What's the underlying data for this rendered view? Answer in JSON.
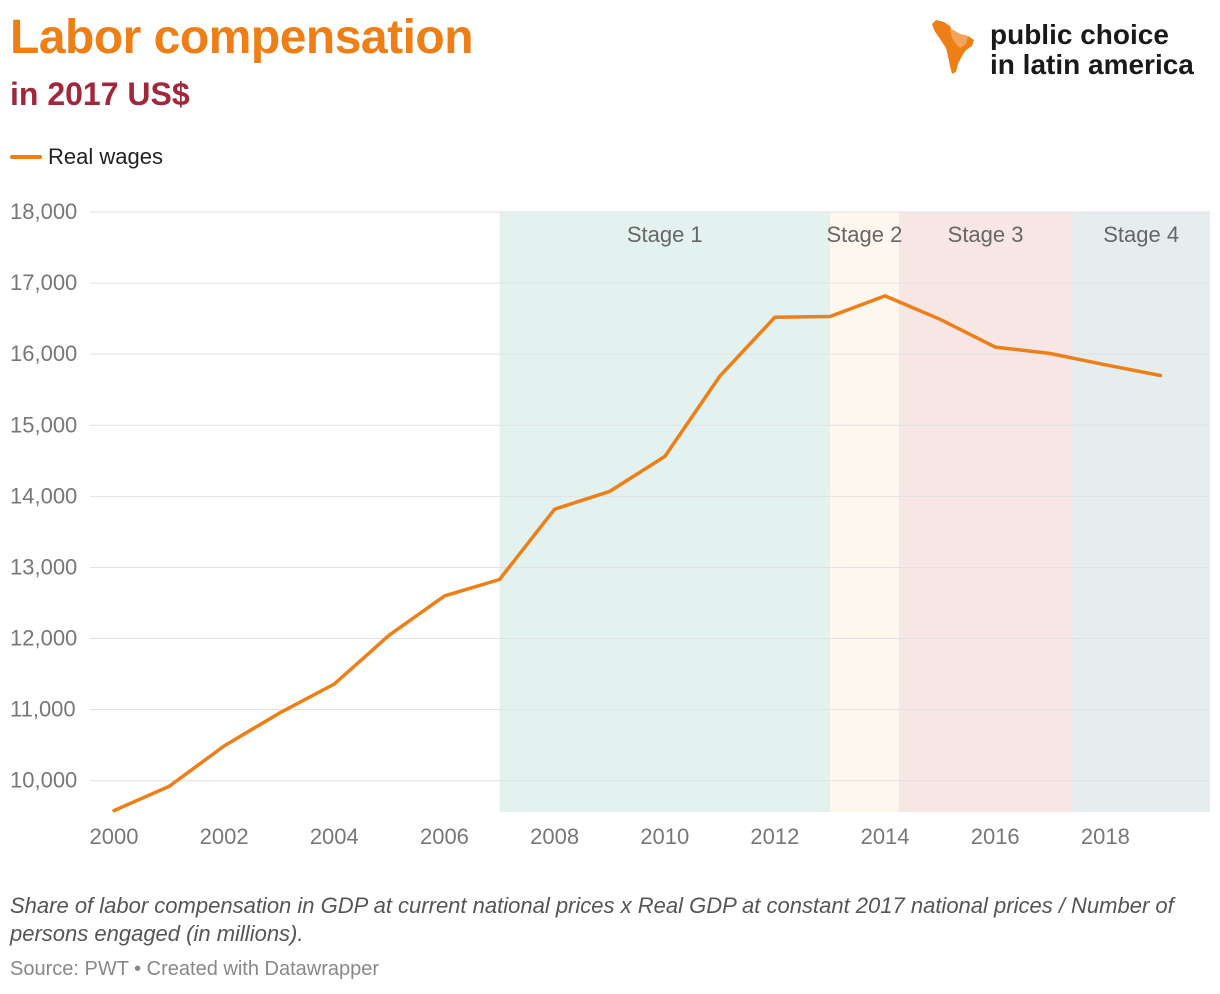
{
  "header": {
    "title": "Labor compensation",
    "subtitle": "in 2017 US$"
  },
  "logo": {
    "line1": "public choice",
    "line2": "in latin america"
  },
  "colors": {
    "line": "#ee7e16",
    "stage1": "#e4f2ef",
    "stage2": "#fdf7ee",
    "stage3": "#f8e6e5",
    "stage4": "#e5edee",
    "grid": "#e1e1e1",
    "tick": "#777777",
    "stage_label": "#666666"
  },
  "chart_data": {
    "type": "line",
    "title": "Labor compensation",
    "subtitle": "in 2017 US$",
    "xlabel": "",
    "ylabel": "",
    "legend": "top-left",
    "grid": true,
    "xlim": [
      2000,
      2019.9
    ],
    "ylim": [
      9560,
      18000
    ],
    "x_ticks": [
      2000,
      2002,
      2004,
      2006,
      2008,
      2010,
      2012,
      2014,
      2016,
      2018
    ],
    "x_tick_labels": [
      "2000",
      "2002",
      "2004",
      "2006",
      "2008",
      "2010",
      "2012",
      "2014",
      "2016",
      "2018"
    ],
    "y_ticks": [
      10000,
      11000,
      12000,
      13000,
      14000,
      15000,
      16000,
      17000,
      18000
    ],
    "y_tick_labels": [
      "10,000",
      "11,000",
      "12,000",
      "13,000",
      "14,000",
      "15,000",
      "16,000",
      "17,000",
      "18,000"
    ],
    "series": [
      {
        "name": "Real wages",
        "x": [
          2000,
          2001,
          2002,
          2003,
          2004,
          2005,
          2006,
          2007,
          2008,
          2009,
          2010,
          2011,
          2012,
          2013,
          2014,
          2015,
          2016,
          2017,
          2018,
          2019
        ],
        "values": [
          9580,
          9920,
          10490,
          10950,
          11360,
          12050,
          12600,
          12830,
          13820,
          14070,
          14560,
          15690,
          16520,
          16530,
          16820,
          16490,
          16100,
          16010,
          15850,
          15700
        ]
      }
    ],
    "annotations": [
      {
        "label": "Stage 1",
        "start": 2007,
        "end": 2013
      },
      {
        "label": "Stage 2",
        "start": 2013,
        "end": 2014.25
      },
      {
        "label": "Stage 3",
        "start": 2014.25,
        "end": 2017.4
      },
      {
        "label": "Stage 4",
        "start": 2017.4,
        "end": 2019.9
      }
    ]
  },
  "footer": {
    "note": "Share of labor compensation in GDP at current national prices x Real GDP at constant 2017 national prices / Number of persons engaged (in millions).",
    "source": "Source: PWT • Created with Datawrapper"
  }
}
